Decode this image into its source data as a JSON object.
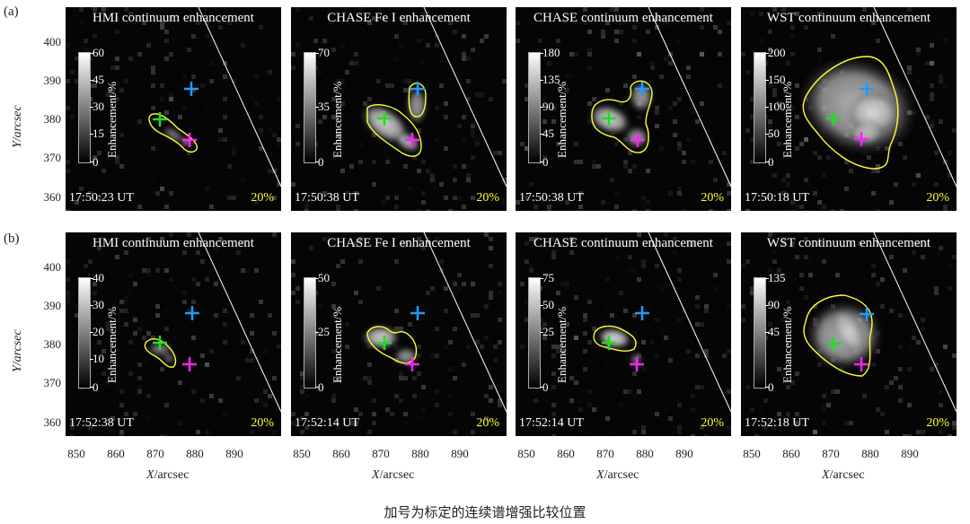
{
  "rows": [
    {
      "label": "(a)",
      "panels": [
        {
          "title": "HMI continuum enhancement",
          "cbar": [
            "60",
            "45",
            "30",
            "15",
            "0"
          ],
          "time": "17:50:23 UT",
          "pct": "20%"
        },
        {
          "title": "CHASE Fe I enhancement",
          "cbar": [
            "70",
            "",
            "35",
            "",
            "0"
          ],
          "time": "17:50:38 UT",
          "pct": "20%"
        },
        {
          "title": "CHASE continuum enhancement",
          "cbar": [
            "180",
            "135",
            "90",
            "45",
            "0"
          ],
          "time": "17:50:38 UT",
          "pct": "20%"
        },
        {
          "title": "WST continuum enhancement",
          "cbar": [
            "200",
            "150",
            "100",
            "50",
            "0"
          ],
          "time": "17:50:18 UT",
          "pct": "20%"
        }
      ]
    },
    {
      "label": "(b)",
      "panels": [
        {
          "title": "HMI continuum enhancement",
          "cbar": [
            "40",
            "30",
            "20",
            "10",
            "0"
          ],
          "time": "17:52:38 UT",
          "pct": "20%"
        },
        {
          "title": "CHASE Fe I enhancement",
          "cbar": [
            "50",
            "",
            "25",
            "",
            "0"
          ],
          "time": "17:52:14 UT",
          "pct": "20%"
        },
        {
          "title": "CHASE continuum enhancement",
          "cbar": [
            "75",
            "50",
            "25",
            "",
            "0"
          ],
          "time": "17:52:14 UT",
          "pct": "20%"
        },
        {
          "title": "WST continuum enhancement",
          "cbar": [
            "135",
            "90",
            "45",
            "",
            "0"
          ],
          "time": "17:52:18 UT",
          "pct": "20%"
        }
      ]
    }
  ],
  "cbar_label": "Enhancement/%",
  "y_axis": {
    "label_var": "Y",
    "label_unit": "/arcsec",
    "ticks": [
      "400",
      "390",
      "380",
      "370",
      "360"
    ]
  },
  "x_axis": {
    "label_var": "X",
    "label_unit": "/arcsec",
    "ticks": [
      "850",
      "860",
      "870",
      "880",
      "890"
    ]
  },
  "caption": "加号为标定的连续谱增强比较位置",
  "colors": {
    "contour": "#ffff33",
    "cross_blue": "#1e9bff",
    "cross_green": "#22dd22",
    "cross_magenta": "#ff22ff"
  }
}
